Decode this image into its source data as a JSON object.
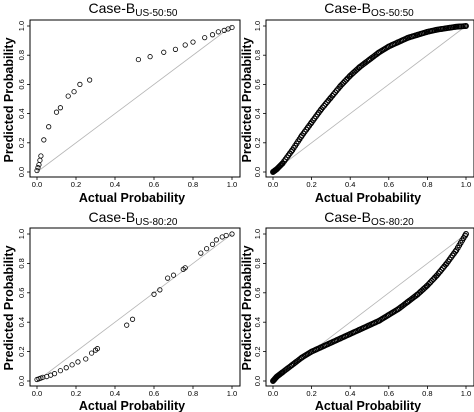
{
  "chart_data": [
    {
      "type": "scatter",
      "title": "Case-B",
      "title_subscript": "US-50:50",
      "xlabel": "Actual Probability",
      "ylabel": "Predicted Probability",
      "xlim": [
        0,
        1
      ],
      "ylim": [
        0,
        1
      ],
      "xticks": [
        "0.0",
        "0.2",
        "0.4",
        "0.6",
        "0.8",
        "1.0"
      ],
      "yticks": [
        "0.0",
        "0.2",
        "0.4",
        "0.6",
        "0.8",
        "1.0"
      ],
      "reference_line": "y = x",
      "curve": "sparse",
      "points": [
        [
          0.0,
          0.01
        ],
        [
          0.005,
          0.03
        ],
        [
          0.01,
          0.05
        ],
        [
          0.015,
          0.08
        ],
        [
          0.02,
          0.11
        ],
        [
          0.035,
          0.22
        ],
        [
          0.06,
          0.31
        ],
        [
          0.1,
          0.41
        ],
        [
          0.12,
          0.44
        ],
        [
          0.16,
          0.52
        ],
        [
          0.19,
          0.55
        ],
        [
          0.22,
          0.6
        ],
        [
          0.27,
          0.63
        ],
        [
          0.52,
          0.77
        ],
        [
          0.58,
          0.79
        ],
        [
          0.65,
          0.82
        ],
        [
          0.71,
          0.84
        ],
        [
          0.76,
          0.87
        ],
        [
          0.8,
          0.89
        ],
        [
          0.86,
          0.92
        ],
        [
          0.9,
          0.94
        ],
        [
          0.93,
          0.96
        ],
        [
          0.96,
          0.97
        ],
        [
          0.98,
          0.98
        ],
        [
          1.0,
          0.99
        ]
      ]
    },
    {
      "type": "scatter",
      "title": "Case-B",
      "title_subscript": "OS-50:50",
      "xlabel": "Actual Probability",
      "ylabel": "Predicted Probability",
      "xlim": [
        0,
        1
      ],
      "ylim": [
        0,
        1
      ],
      "xticks": [
        "0.0",
        "0.2",
        "0.4",
        "0.6",
        "0.8",
        "1.0"
      ],
      "yticks": [
        "0.0",
        "0.2",
        "0.4",
        "0.6",
        "0.8",
        "1.0"
      ],
      "reference_line": "y = x",
      "curve": "dense",
      "points": [
        [
          0.0,
          0.0
        ],
        [
          0.02,
          0.02
        ],
        [
          0.05,
          0.06
        ],
        [
          0.1,
          0.15
        ],
        [
          0.15,
          0.25
        ],
        [
          0.2,
          0.34
        ],
        [
          0.25,
          0.43
        ],
        [
          0.3,
          0.51
        ],
        [
          0.35,
          0.59
        ],
        [
          0.4,
          0.66
        ],
        [
          0.45,
          0.72
        ],
        [
          0.5,
          0.77
        ],
        [
          0.55,
          0.82
        ],
        [
          0.6,
          0.86
        ],
        [
          0.65,
          0.89
        ],
        [
          0.7,
          0.92
        ],
        [
          0.75,
          0.94
        ],
        [
          0.8,
          0.96
        ],
        [
          0.85,
          0.975
        ],
        [
          0.9,
          0.985
        ],
        [
          0.95,
          0.995
        ],
        [
          1.0,
          1.0
        ]
      ]
    },
    {
      "type": "scatter",
      "title": "Case-B",
      "title_subscript": "US-80:20",
      "xlabel": "Actual Probability",
      "ylabel": "Predicted Probability",
      "xlim": [
        0,
        1
      ],
      "ylim": [
        0,
        1
      ],
      "xticks": [
        "0.0",
        "0.2",
        "0.4",
        "0.6",
        "0.8",
        "1.0"
      ],
      "yticks": [
        "0.0",
        "0.2",
        "0.4",
        "0.6",
        "0.8",
        "1.0"
      ],
      "reference_line": "y = x",
      "curve": "sparse",
      "points": [
        [
          0.0,
          0.01
        ],
        [
          0.01,
          0.015
        ],
        [
          0.02,
          0.02
        ],
        [
          0.03,
          0.025
        ],
        [
          0.05,
          0.03
        ],
        [
          0.07,
          0.04
        ],
        [
          0.09,
          0.05
        ],
        [
          0.12,
          0.07
        ],
        [
          0.15,
          0.09
        ],
        [
          0.18,
          0.11
        ],
        [
          0.21,
          0.13
        ],
        [
          0.25,
          0.15
        ],
        [
          0.28,
          0.19
        ],
        [
          0.3,
          0.21
        ],
        [
          0.31,
          0.22
        ],
        [
          0.46,
          0.38
        ],
        [
          0.49,
          0.42
        ],
        [
          0.6,
          0.59
        ],
        [
          0.63,
          0.62
        ],
        [
          0.67,
          0.7
        ],
        [
          0.7,
          0.72
        ],
        [
          0.75,
          0.76
        ],
        [
          0.76,
          0.77
        ],
        [
          0.84,
          0.87
        ],
        [
          0.87,
          0.9
        ],
        [
          0.9,
          0.93
        ],
        [
          0.92,
          0.96
        ],
        [
          0.95,
          0.98
        ],
        [
          0.97,
          0.99
        ],
        [
          1.0,
          1.0
        ]
      ]
    },
    {
      "type": "scatter",
      "title": "Case-B",
      "title_subscript": "OS-80:20",
      "xlabel": "Actual Probability",
      "ylabel": "Predicted Probability",
      "xlim": [
        0,
        1
      ],
      "ylim": [
        0,
        1
      ],
      "xticks": [
        "0.0",
        "0.2",
        "0.4",
        "0.6",
        "0.8",
        "1.0"
      ],
      "yticks": [
        "0.0",
        "0.2",
        "0.4",
        "0.6",
        "0.8",
        "1.0"
      ],
      "reference_line": "y = x",
      "curve": "dense",
      "points": [
        [
          0.0,
          0.0
        ],
        [
          0.02,
          0.03
        ],
        [
          0.05,
          0.06
        ],
        [
          0.1,
          0.11
        ],
        [
          0.15,
          0.16
        ],
        [
          0.2,
          0.2
        ],
        [
          0.25,
          0.23
        ],
        [
          0.3,
          0.26
        ],
        [
          0.35,
          0.29
        ],
        [
          0.4,
          0.32
        ],
        [
          0.45,
          0.35
        ],
        [
          0.5,
          0.38
        ],
        [
          0.55,
          0.41
        ],
        [
          0.6,
          0.45
        ],
        [
          0.65,
          0.49
        ],
        [
          0.7,
          0.54
        ],
        [
          0.75,
          0.59
        ],
        [
          0.8,
          0.65
        ],
        [
          0.85,
          0.72
        ],
        [
          0.9,
          0.8
        ],
        [
          0.95,
          0.89
        ],
        [
          1.0,
          1.0
        ]
      ]
    }
  ]
}
